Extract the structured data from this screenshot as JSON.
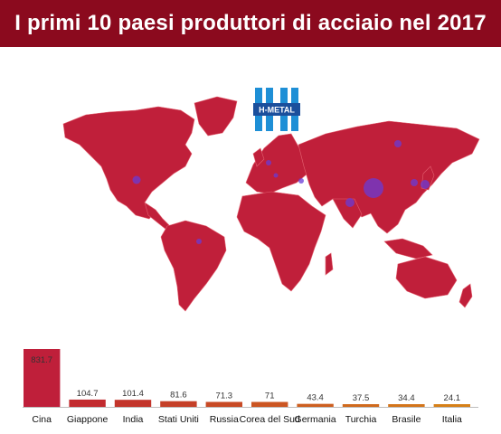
{
  "header": {
    "title": "I primi 10 paesi produttori di acciaio nel 2017"
  },
  "logo": {
    "text": "H-METAL"
  },
  "map": {
    "land_color": "#c01f3a",
    "bubble_color": "#6a3bd6"
  },
  "chart_data": {
    "type": "bar",
    "title": "I primi 10 paesi produttori di acciaio nel 2017",
    "categories": [
      "Cina",
      "Giappone",
      "India",
      "Stati Uniti",
      "Russia",
      "Corea del Sud",
      "Germania",
      "Turchia",
      "Brasile",
      "Italia"
    ],
    "values": [
      831.7,
      104.7,
      101.4,
      81.6,
      71.3,
      71,
      43.4,
      37.5,
      34.4,
      24.1
    ],
    "value_labels": [
      "831.7",
      "104.7",
      "101.4",
      "81.6",
      "71.3",
      "71",
      "43.4",
      "37.5",
      "34.4",
      "24.1"
    ],
    "colors": [
      "#bf1f3a",
      "#c22b2f",
      "#c3352b",
      "#c54028",
      "#c84a25",
      "#cb5522",
      "#cd5f20",
      "#d06a1d",
      "#d3751b",
      "#d68018"
    ],
    "ylim": [
      0,
      831.7
    ],
    "grid": false,
    "xlabel": "",
    "ylabel": ""
  }
}
